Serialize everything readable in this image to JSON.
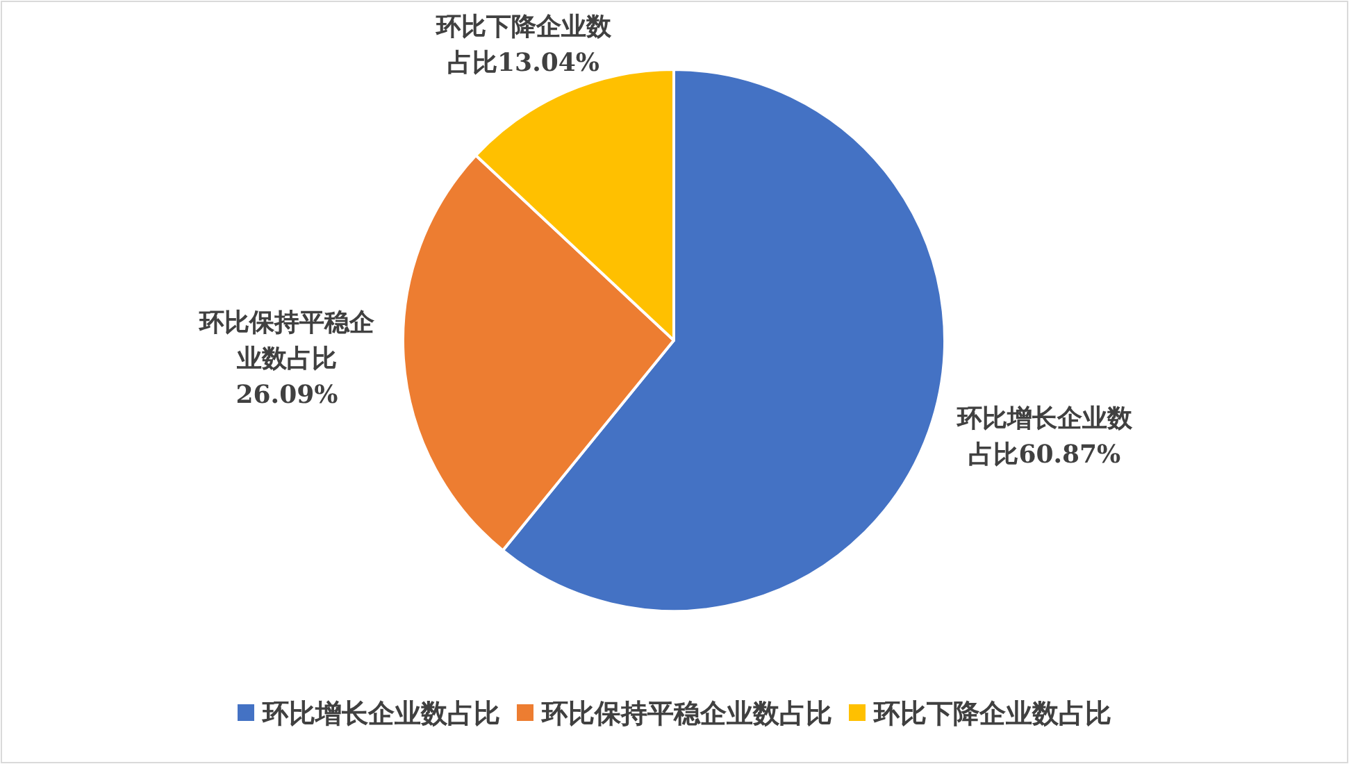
{
  "chart_data": {
    "type": "pie",
    "categories": [
      "环比增长企业数占比",
      "环比保持平稳企业数占比",
      "环比下降企业数占比"
    ],
    "values": [
      60.87,
      26.09,
      13.04
    ],
    "value_labels": [
      "60.87%",
      "26.09%",
      "13.04%"
    ],
    "colors": [
      "#4472c4",
      "#ed7d31",
      "#ffc000"
    ],
    "legend": "bottom"
  }
}
